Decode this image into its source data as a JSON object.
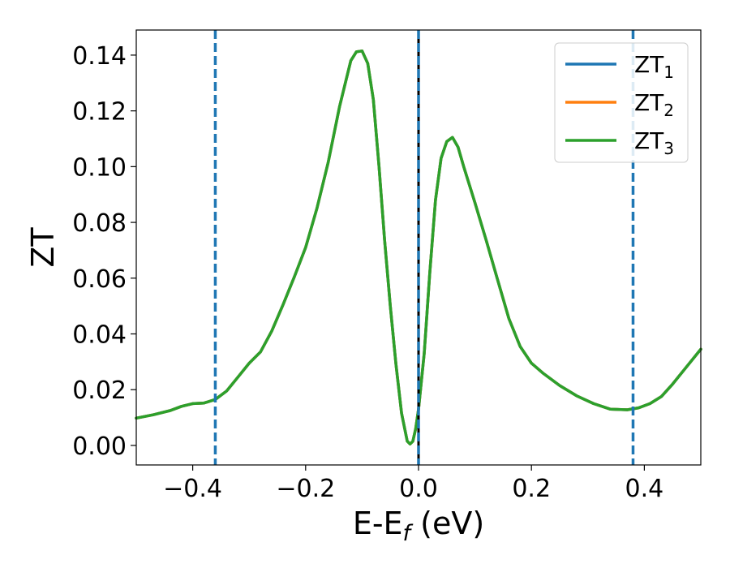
{
  "chart_data": {
    "type": "line",
    "xlabel_main": "E-E",
    "xlabel_sub": "f",
    "xlabel_unit": " (eV)",
    "ylabel": "ZT",
    "xlim": [
      -0.5,
      0.5
    ],
    "ylim": [
      -0.007,
      0.149
    ],
    "x_ticks": [
      -0.4,
      -0.2,
      0.0,
      0.2,
      0.4
    ],
    "x_tick_labels": [
      "−0.4",
      "−0.2",
      "0.0",
      "0.2",
      "0.4"
    ],
    "y_ticks": [
      0.0,
      0.02,
      0.04,
      0.06,
      0.08,
      0.1,
      0.12,
      0.14
    ],
    "y_tick_labels": [
      "0.00",
      "0.02",
      "0.04",
      "0.06",
      "0.08",
      "0.10",
      "0.12",
      "0.14"
    ],
    "grid": false,
    "legend_position": "top-right",
    "series": [
      {
        "name_main": "ZT",
        "name_sub": "1",
        "color": "#1f77b4"
      },
      {
        "name_main": "ZT",
        "name_sub": "2",
        "color": "#ff7f0e"
      },
      {
        "name_main": "ZT",
        "name_sub": "3",
        "color": "#2ca02c"
      }
    ],
    "curve": {
      "x": [
        -0.5,
        -0.47,
        -0.44,
        -0.42,
        -0.4,
        -0.38,
        -0.36,
        -0.34,
        -0.32,
        -0.3,
        -0.28,
        -0.26,
        -0.24,
        -0.22,
        -0.2,
        -0.18,
        -0.16,
        -0.14,
        -0.12,
        -0.11,
        -0.1,
        -0.09,
        -0.08,
        -0.07,
        -0.06,
        -0.05,
        -0.04,
        -0.03,
        -0.02,
        -0.015,
        -0.01,
        -0.005,
        0.0,
        0.01,
        0.02,
        0.03,
        0.04,
        0.05,
        0.06,
        0.07,
        0.08,
        0.1,
        0.12,
        0.14,
        0.16,
        0.18,
        0.2,
        0.22,
        0.25,
        0.28,
        0.31,
        0.34,
        0.37,
        0.39,
        0.41,
        0.43,
        0.45,
        0.47,
        0.5
      ],
      "y": [
        0.0098,
        0.011,
        0.0125,
        0.014,
        0.015,
        0.0152,
        0.0165,
        0.0195,
        0.0245,
        0.0295,
        0.0335,
        0.041,
        0.0505,
        0.0605,
        0.071,
        0.085,
        0.1015,
        0.1215,
        0.138,
        0.1412,
        0.1415,
        0.137,
        0.124,
        0.1,
        0.0735,
        0.05,
        0.029,
        0.0115,
        0.0015,
        0.0005,
        0.0015,
        0.006,
        0.013,
        0.033,
        0.062,
        0.088,
        0.103,
        0.109,
        0.1105,
        0.107,
        0.1,
        0.087,
        0.0735,
        0.0595,
        0.0455,
        0.0355,
        0.0295,
        0.026,
        0.0215,
        0.0178,
        0.015,
        0.013,
        0.0128,
        0.0135,
        0.015,
        0.0175,
        0.022,
        0.027,
        0.0345
      ]
    },
    "dashed_vlines": [
      {
        "x": -0.36,
        "color": "#1f77b4"
      },
      {
        "x": 0.0,
        "color": "#1f77b4"
      },
      {
        "x": 0.38,
        "color": "#1f77b4"
      }
    ],
    "fermi_line": {
      "x": 0.0,
      "color": "#000000"
    }
  }
}
